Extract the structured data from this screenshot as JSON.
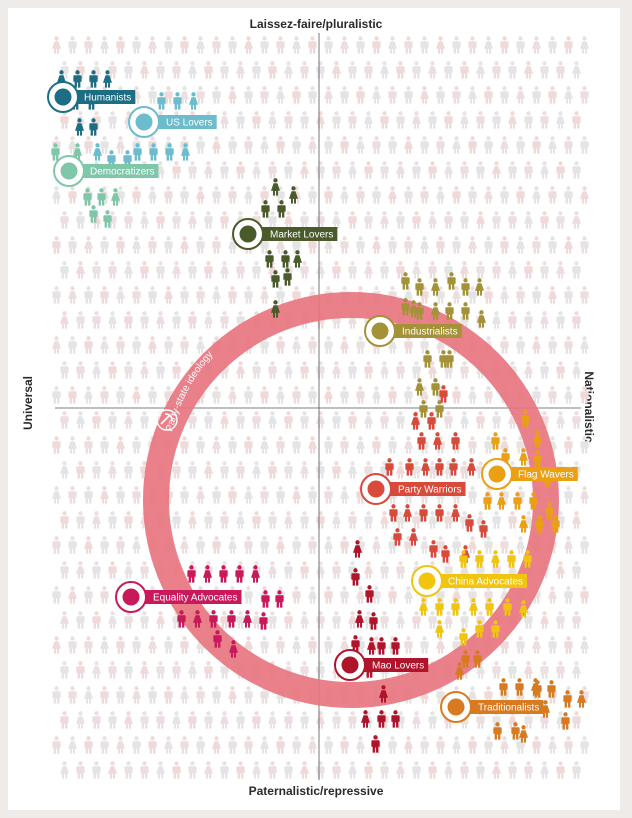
{
  "axes": {
    "top": "Laissez-faire/pluralistic",
    "bottom": "Paternalistic/repressive",
    "left": "Universal",
    "right": "Nationalistic"
  },
  "ring": {
    "label": "Party-state ideology",
    "color": "#e8737d"
  },
  "groups": [
    {
      "name": "Humanists",
      "color": "#1d6e85",
      "icon": "person-icon"
    },
    {
      "name": "US Lovers",
      "color": "#6bbccc",
      "icon": "statue-of-liberty-icon"
    },
    {
      "name": "Democratizers",
      "color": "#7fc7a8",
      "icon": "ballot-box-icon"
    },
    {
      "name": "Market Lovers",
      "color": "#4a5a2a",
      "icon": "yen-icon"
    },
    {
      "name": "Industrialists",
      "color": "#a39237",
      "icon": "robot-arm-icon"
    },
    {
      "name": "Flag Wavers",
      "color": "#eaa012",
      "icon": "flag-icon"
    },
    {
      "name": "Party Warriors",
      "color": "#d84a3a",
      "icon": "hammer-sickle-icon"
    },
    {
      "name": "China Advocates",
      "color": "#f1c40f",
      "icon": "globe-icon"
    },
    {
      "name": "Equality Advocates",
      "color": "#c8195a",
      "icon": "columns-icon"
    },
    {
      "name": "Mao Lovers",
      "color": "#b0142a",
      "icon": "mao-portrait-icon"
    },
    {
      "name": "Traditionalists",
      "color": "#d87a1f",
      "icon": "temple-icon"
    }
  ]
}
